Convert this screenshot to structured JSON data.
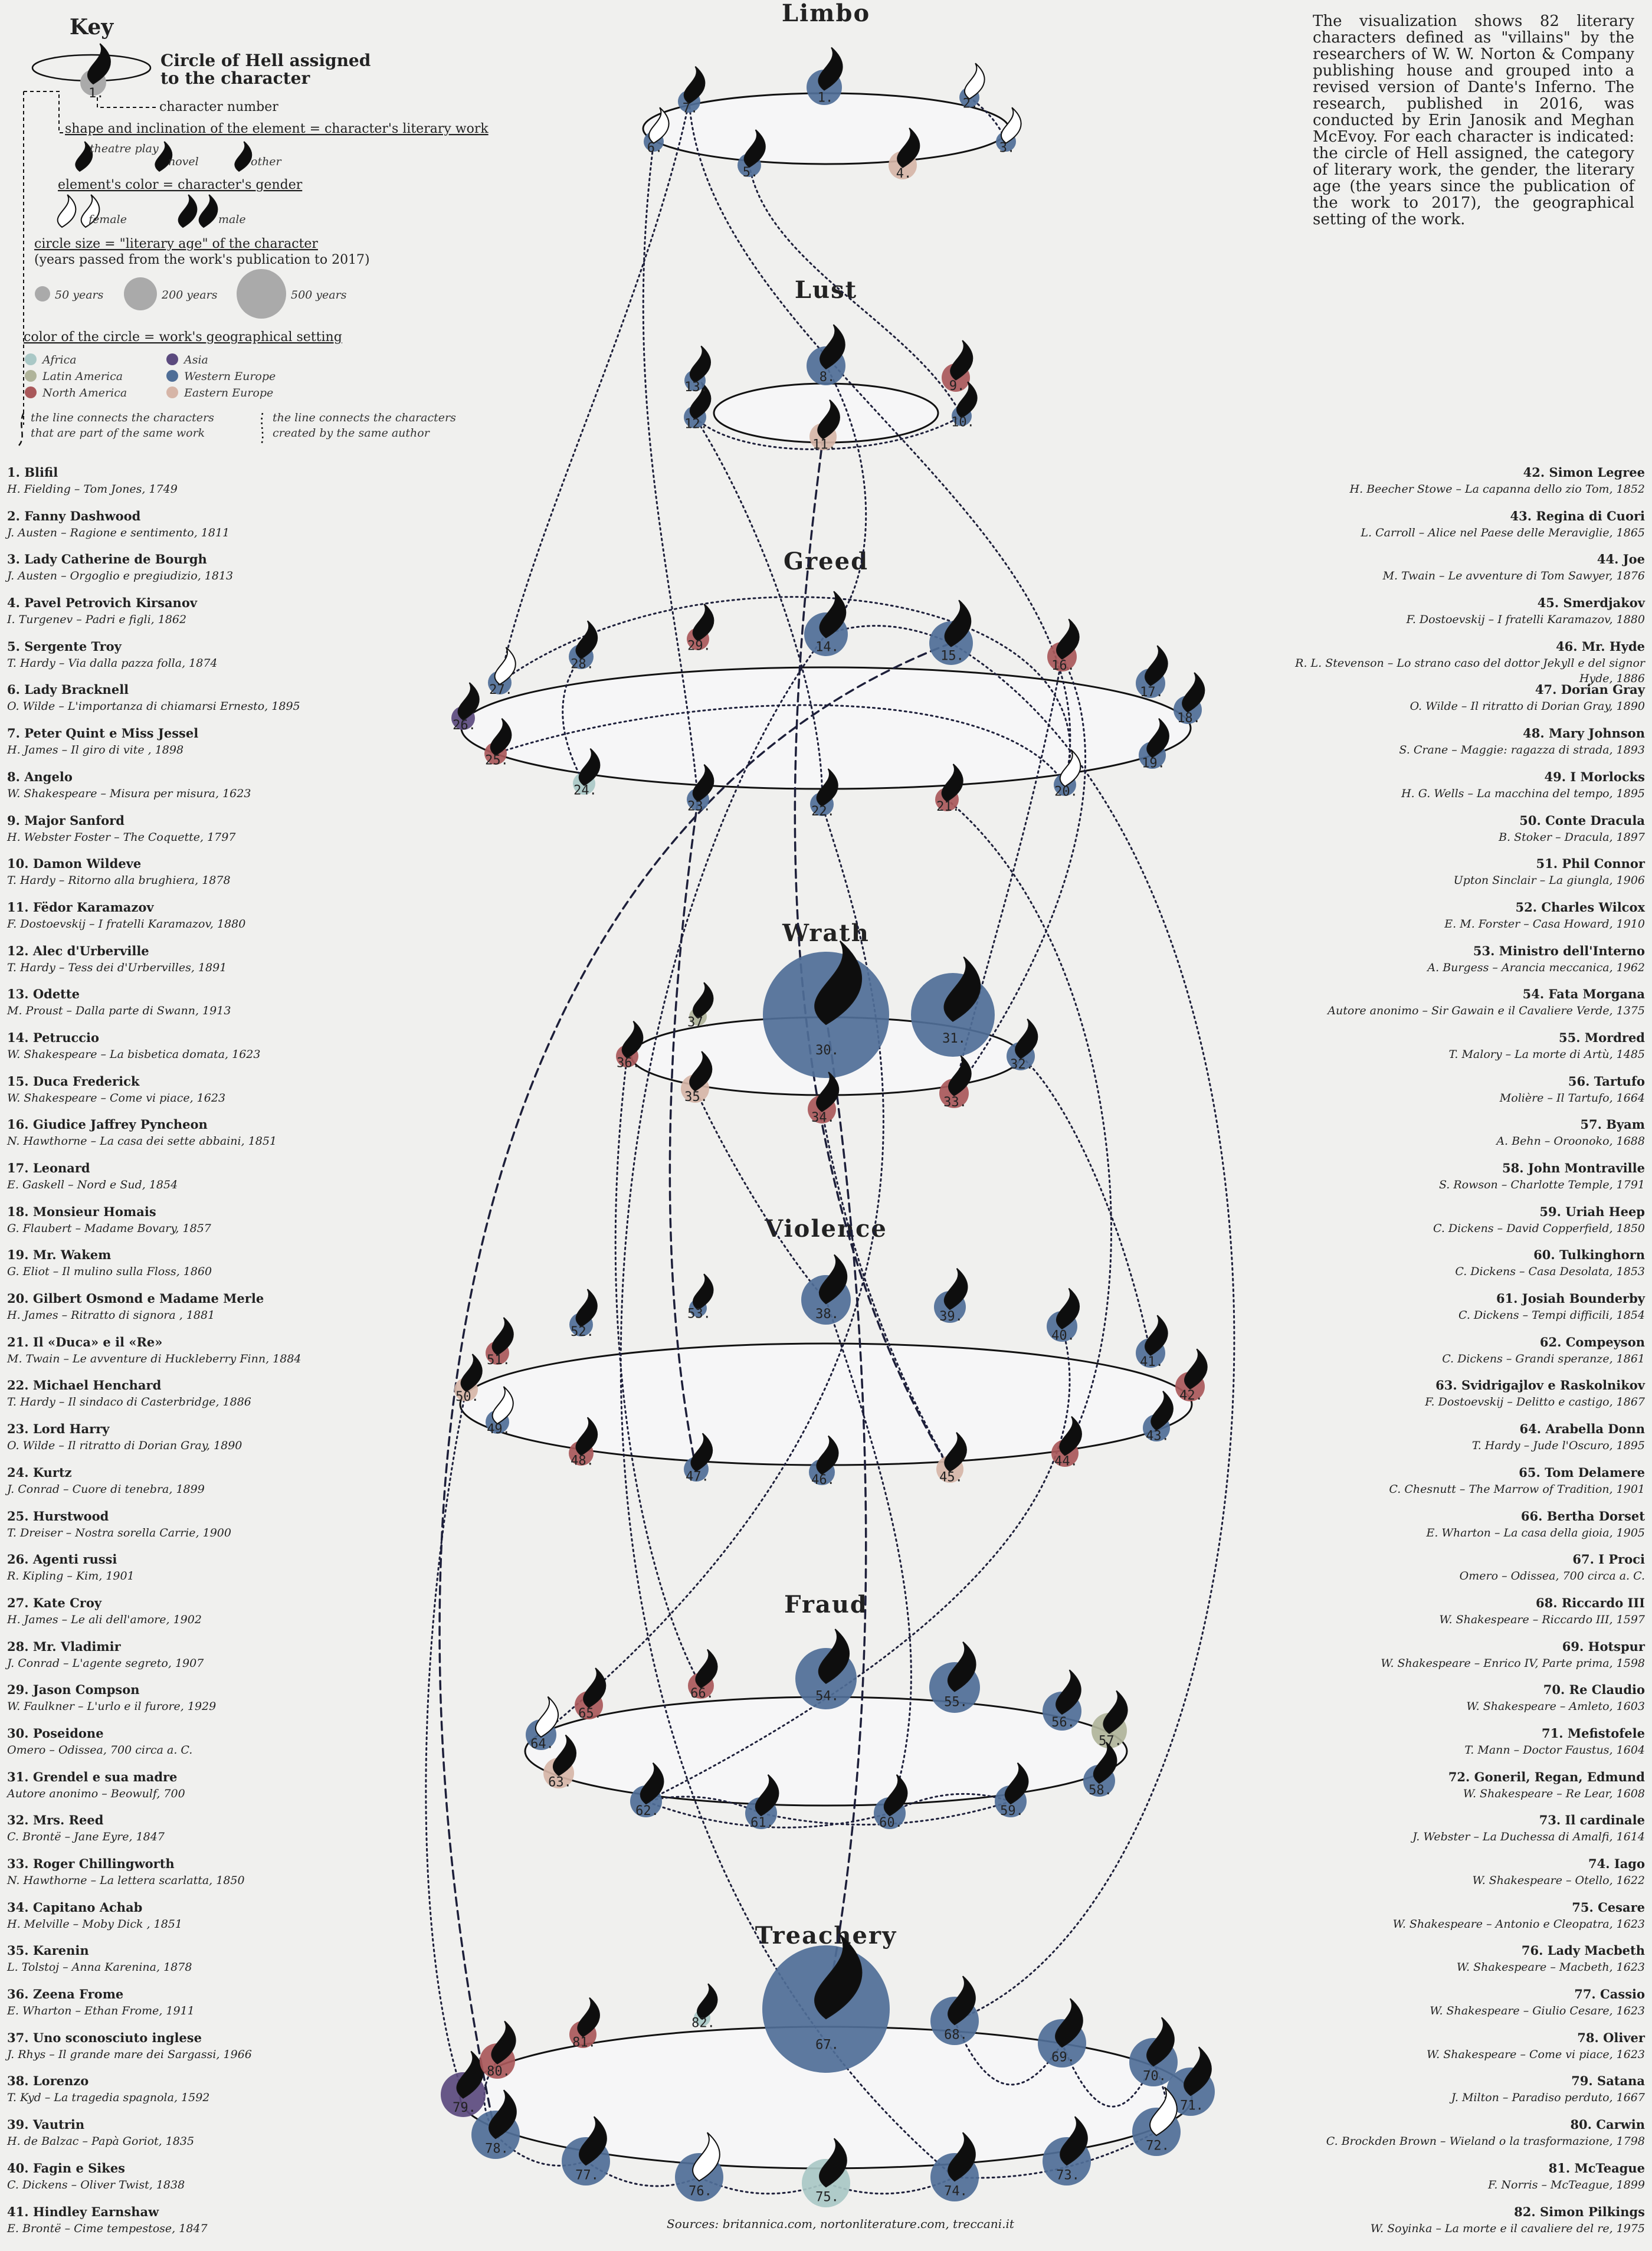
{
  "key": {
    "title": "Key",
    "circle_label": "Circle of Hell assigned to the character",
    "circle_label_line1": "Circle of Hell assigned",
    "circle_label_line2": "to the character",
    "sample_number": "1.",
    "number_label": "character number",
    "shape_label": "shape and inclination of the element = character's literary work",
    "shape_types": [
      "theatre play",
      "novel",
      "other"
    ],
    "color_label": "element's color = character's gender",
    "genders": [
      "female",
      "male"
    ],
    "size_label": "circle size = \"literary age\" of the character",
    "size_sub": "(years passed from the work's publication to 2017)",
    "size_examples": [
      "50 years",
      "200 years",
      "500 years"
    ],
    "region_label": "color of the circle = work's geographical setting",
    "regions": [
      {
        "name": "Africa",
        "color": "#a9c8c6"
      },
      {
        "name": "Asia",
        "color": "#5b4a7e"
      },
      {
        "name": "Latin America",
        "color": "#b0b49a"
      },
      {
        "name": "Western Europe",
        "color": "#4f6e97"
      },
      {
        "name": "North America",
        "color": "#a9585a"
      },
      {
        "name": "Eastern Europe",
        "color": "#d6b5a7"
      }
    ],
    "line_work": "the line connects the characters that are part of the same work",
    "line_work_1": "the line connects the characters",
    "line_work_2": "that are part of the same work",
    "line_author": "the line connects the characters created by the same author",
    "line_author_1": "the line connects the characters",
    "line_author_2": "created by the same author"
  },
  "intro": "The visualization shows 82 literary characters defined as \"villains\" by the researchers of W. W. Norton & Company publishing house and grouped into a revised version of Dante's Inferno. The research, published in 2016, was conducted by Erin Janosik and Meghan McEvoy. For each character is indicated: the circle of Hell assigned, the category of literary work, the gender, the literary age (the years since the publication of the work to 2017), the geographical setting of the work.",
  "circles": [
    "Limbo",
    "Lust",
    "Greed",
    "Wrath",
    "Violence",
    "Fraud",
    "Treachery"
  ],
  "characters": [
    {
      "n": "1.",
      "name": "Blifil",
      "work": "H. Fielding – Tom Jones, 1749"
    },
    {
      "n": "2.",
      "name": "Fanny Dashwood",
      "work": "J. Austen – Ragione e sentimento, 1811"
    },
    {
      "n": "3.",
      "name": "Lady Catherine de Bourgh",
      "work": "J. Austen – Orgoglio e pregiudizio, 1813"
    },
    {
      "n": "4.",
      "name": "Pavel Petrovich Kirsanov",
      "work": "I. Turgenev – Padri e figli, 1862"
    },
    {
      "n": "5.",
      "name": "Sergente Troy",
      "work": "T. Hardy – Via dalla pazza folla, 1874"
    },
    {
      "n": "6.",
      "name": "Lady Bracknell",
      "work": "O. Wilde – L'importanza di chiamarsi Ernesto, 1895"
    },
    {
      "n": "7.",
      "name": "Peter Quint e Miss Jessel",
      "work": "H. James – Il giro di vite , 1898"
    },
    {
      "n": "8.",
      "name": "Angelo",
      "work": "W. Shakespeare – Misura per misura, 1623"
    },
    {
      "n": "9.",
      "name": "Major Sanford",
      "work": "H. Webster Foster – The Coquette, 1797"
    },
    {
      "n": "10.",
      "name": "Damon Wildeve",
      "work": "T. Hardy – Ritorno alla brughiera, 1878"
    },
    {
      "n": "11.",
      "name": "Fëdor Karamazov",
      "work": "F. Dostoevskij – I fratelli Karamazov, 1880"
    },
    {
      "n": "12.",
      "name": "Alec d'Urberville",
      "work": "T. Hardy – Tess dei d'Urbervilles, 1891"
    },
    {
      "n": "13.",
      "name": "Odette",
      "work": "M. Proust – Dalla parte di Swann, 1913"
    },
    {
      "n": "14.",
      "name": "Petruccio",
      "work": "W. Shakespeare – La bisbetica domata, 1623"
    },
    {
      "n": "15.",
      "name": "Duca Frederick",
      "work": "W. Shakespeare – Come vi piace, 1623"
    },
    {
      "n": "16.",
      "name": "Giudice Jaffrey Pyncheon",
      "work": "N. Hawthorne – La casa dei sette abbaini, 1851"
    },
    {
      "n": "17.",
      "name": "Leonard",
      "work": "E. Gaskell – Nord e Sud, 1854"
    },
    {
      "n": "18.",
      "name": "Monsieur Homais",
      "work": "G. Flaubert – Madame Bovary, 1857"
    },
    {
      "n": "19.",
      "name": "Mr. Wakem",
      "work": "G. Eliot – Il mulino sulla Floss, 1860"
    },
    {
      "n": "20.",
      "name": "Gilbert Osmond e Madame Merle",
      "work": "H. James – Ritratto di signora , 1881"
    },
    {
      "n": "21.",
      "name": "Il «Duca» e il «Re»",
      "work": "M. Twain – Le avventure di Huckleberry Finn, 1884"
    },
    {
      "n": "22.",
      "name": "Michael Henchard",
      "work": "T. Hardy – Il sindaco di Casterbridge, 1886"
    },
    {
      "n": "23.",
      "name": "Lord Harry",
      "work": "O. Wilde – Il ritratto di Dorian Gray, 1890"
    },
    {
      "n": "24.",
      "name": "Kurtz",
      "work": "J. Conrad – Cuore di tenebra, 1899"
    },
    {
      "n": "25.",
      "name": "Hurstwood",
      "work": "T. Dreiser – Nostra sorella Carrie, 1900"
    },
    {
      "n": "26.",
      "name": "Agenti russi",
      "work": "R. Kipling – Kim, 1901"
    },
    {
      "n": "27.",
      "name": "Kate Croy",
      "work": "H. James – Le ali dell'amore, 1902"
    },
    {
      "n": "28.",
      "name": "Mr. Vladimir",
      "work": "J. Conrad – L'agente segreto, 1907"
    },
    {
      "n": "29.",
      "name": "Jason Compson",
      "work": "W. Faulkner – L'urlo e il furore, 1929"
    },
    {
      "n": "30.",
      "name": "Poseidone",
      "work": "Omero – Odissea, 700 circa a. C."
    },
    {
      "n": "31.",
      "name": "Grendel e sua madre",
      "work": "Autore anonimo – Beowulf, 700"
    },
    {
      "n": "32.",
      "name": "Mrs. Reed",
      "work": "C. Brontë – Jane Eyre, 1847"
    },
    {
      "n": "33.",
      "name": "Roger Chillingworth",
      "work": "N. Hawthorne – La lettera scarlatta, 1850"
    },
    {
      "n": "34.",
      "name": "Capitano Achab",
      "work": "H. Melville – Moby Dick , 1851"
    },
    {
      "n": "35.",
      "name": "Karenin",
      "work": "L. Tolstoj – Anna Karenina, 1878"
    },
    {
      "n": "36.",
      "name": "Zeena Frome",
      "work": "E. Wharton – Ethan Frome, 1911"
    },
    {
      "n": "37.",
      "name": "Uno sconosciuto inglese",
      "work": "J. Rhys – Il grande mare dei Sargassi, 1966"
    },
    {
      "n": "38.",
      "name": "Lorenzo",
      "work": "T. Kyd – La tragedia spagnola, 1592"
    },
    {
      "n": "39.",
      "name": "Vautrin",
      "work": "H. de Balzac – Papà Goriot, 1835"
    },
    {
      "n": "40.",
      "name": "Fagin e Sikes",
      "work": "C. Dickens – Oliver Twist, 1838"
    },
    {
      "n": "41.",
      "name": "Hindley Earnshaw",
      "work": "E. Brontë – Cime tempestose, 1847"
    },
    {
      "n": "42.",
      "name": "Simon Legree",
      "work": "H. Beecher Stowe – La capanna dello zio Tom, 1852"
    },
    {
      "n": "43.",
      "name": "Regina di Cuori",
      "work": "L. Carroll – Alice nel Paese delle Meraviglie, 1865"
    },
    {
      "n": "44.",
      "name": "Joe",
      "work": "M. Twain – Le avventure di Tom Sawyer, 1876"
    },
    {
      "n": "45.",
      "name": "Smerdjakov",
      "work": "F. Dostoevskij – I fratelli Karamazov, 1880"
    },
    {
      "n": "46.",
      "name": "Mr. Hyde",
      "work": "R. L. Stevenson – Lo strano caso del dottor Jekyll e del signor Hyde, 1886"
    },
    {
      "n": "47.",
      "name": "Dorian Gray",
      "work": "O. Wilde – Il ritratto di Dorian Gray, 1890"
    },
    {
      "n": "48.",
      "name": "Mary Johnson",
      "work": "S. Crane – Maggie: ragazza di strada, 1893"
    },
    {
      "n": "49.",
      "name": "I Morlocks",
      "work": "H. G. Wells – La macchina del tempo, 1895"
    },
    {
      "n": "50.",
      "name": "Conte Dracula",
      "work": "B. Stoker – Dracula, 1897"
    },
    {
      "n": "51.",
      "name": "Phil Connor",
      "work": "Upton Sinclair – La giungla, 1906"
    },
    {
      "n": "52.",
      "name": "Charles Wilcox",
      "work": "E. M. Forster – Casa Howard, 1910"
    },
    {
      "n": "53.",
      "name": "Ministro dell'Interno",
      "work": "A. Burgess – Arancia meccanica, 1962"
    },
    {
      "n": "54.",
      "name": "Fata Morgana",
      "work": "Autore anonimo – Sir Gawain e il Cavaliere Verde, 1375"
    },
    {
      "n": "55.",
      "name": "Mordred",
      "work": "T. Malory – La morte di Artù, 1485"
    },
    {
      "n": "56.",
      "name": "Tartufo",
      "work": "Molière – Il Tartufo, 1664"
    },
    {
      "n": "57.",
      "name": "Byam",
      "work": "A. Behn – Oroonoko, 1688"
    },
    {
      "n": "58.",
      "name": "John Montraville",
      "work": "S. Rowson – Charlotte Temple, 1791"
    },
    {
      "n": "59.",
      "name": "Uriah Heep",
      "work": "C. Dickens – David Copperfield, 1850"
    },
    {
      "n": "60.",
      "name": "Tulkinghorn",
      "work": "C. Dickens – Casa Desolata, 1853"
    },
    {
      "n": "61.",
      "name": "Josiah Bounderby",
      "work": "C. Dickens – Tempi difficili, 1854"
    },
    {
      "n": "62.",
      "name": "Compeyson",
      "work": "C. Dickens – Grandi speranze, 1861"
    },
    {
      "n": "63.",
      "name": "Svidrigajlov e Raskolnikov",
      "work": "F. Dostoevskij – Delitto e castigo, 1867"
    },
    {
      "n": "64.",
      "name": "Arabella Donn",
      "work": "T. Hardy – Jude l'Oscuro, 1895"
    },
    {
      "n": "65.",
      "name": "Tom Delamere",
      "work": "C. Chesnutt – The Marrow of Tradition, 1901"
    },
    {
      "n": "66.",
      "name": "Bertha Dorset",
      "work": "E. Wharton – La casa della gioia, 1905"
    },
    {
      "n": "67.",
      "name": "I Proci",
      "work": "Omero – Odissea, 700 circa a. C."
    },
    {
      "n": "68.",
      "name": "Riccardo III",
      "work": "W. Shakespeare – Riccardo III, 1597"
    },
    {
      "n": "69.",
      "name": "Hotspur",
      "work": "W. Shakespeare – Enrico IV, Parte prima, 1598"
    },
    {
      "n": "70.",
      "name": "Re Claudio",
      "work": "W. Shakespeare – Amleto, 1603"
    },
    {
      "n": "71.",
      "name": "Mefistofele",
      "work": "T. Mann – Doctor Faustus, 1604"
    },
    {
      "n": "72.",
      "name": "Goneril, Regan, Edmund",
      "work": "W. Shakespeare – Re Lear, 1608"
    },
    {
      "n": "73.",
      "name": "Il cardinale",
      "work": "J. Webster – La Duchessa di Amalfi, 1614"
    },
    {
      "n": "74.",
      "name": "Iago",
      "work": "W. Shakespeare – Otello, 1622"
    },
    {
      "n": "75.",
      "name": "Cesare",
      "work": "W. Shakespeare – Antonio e Cleopatra, 1623"
    },
    {
      "n": "76.",
      "name": "Lady Macbeth",
      "work": "W. Shakespeare – Macbeth, 1623"
    },
    {
      "n": "77.",
      "name": "Cassio",
      "work": "W. Shakespeare – Giulio Cesare, 1623"
    },
    {
      "n": "78.",
      "name": "Oliver",
      "work": "W. Shakespeare – Come vi piace, 1623"
    },
    {
      "n": "79.",
      "name": "Satana",
      "work": "J. Milton – Paradiso perduto, 1667"
    },
    {
      "n": "80.",
      "name": "Carwin",
      "work": "C. Brockden Brown – Wieland o la trasformazione, 1798"
    },
    {
      "n": "81.",
      "name": "McTeague",
      "work": "F. Norris – McTeague, 1899"
    },
    {
      "n": "82.",
      "name": "Simon Pilkings",
      "work": "W. Soyinka – La morte e il cavaliere del re, 1975"
    }
  ],
  "sources": "Sources: britannica.com, nortonliterature.com, treccani.it"
}
